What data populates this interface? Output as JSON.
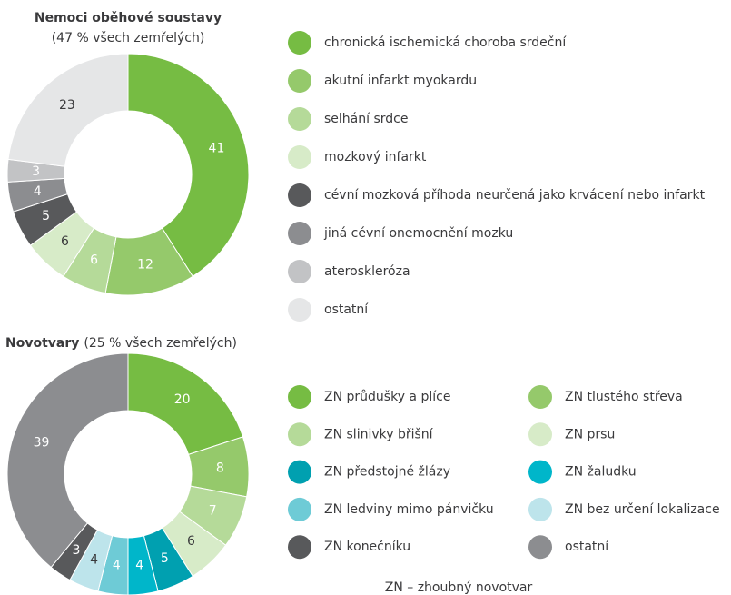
{
  "chart_data": [
    {
      "type": "pie",
      "title": "Nemoci oběhové soustavy",
      "subtitle": "(47 % všech zemřelých)",
      "categories": [
        "chronická ischemická choroba srdeční",
        "akutní infarkt myokardu",
        "selhání srdce",
        "mozkový infarkt",
        "cévní mozková příhoda neurčená jako krvácení nebo infarkt",
        "jiná cévní onemocnění mozku",
        "ateroskleróza",
        "ostatní"
      ],
      "values": [
        41,
        12,
        6,
        6,
        5,
        4,
        3,
        23
      ],
      "colors": [
        "#76bc43",
        "#95c96b",
        "#b5da99",
        "#d7ebc8",
        "#58595b",
        "#8c8d90",
        "#c2c3c5",
        "#e5e6e7"
      ]
    },
    {
      "type": "pie",
      "title": "Novotvary",
      "subtitle": "(25 % všech zemřelých)",
      "categories": [
        "ZN průdušky a plíce",
        "ZN tlustého střeva",
        "ZN slinivky břišní",
        "ZN prsu",
        "ZN předstojné žlázy",
        "ZN žaludku",
        "ZN ledviny mimo pánvičku",
        "ZN bez určení lokalizace",
        "ZN konečníku",
        "ostatní"
      ],
      "values": [
        20,
        8,
        7,
        6,
        5,
        4,
        4,
        4,
        3,
        39
      ],
      "colors": [
        "#76bc43",
        "#95c96b",
        "#b5da99",
        "#d7ebc8",
        "#00a0b0",
        "#00b6ca",
        "#6ecbd6",
        "#bde4eb",
        "#58595b",
        "#8c8d90"
      ],
      "annotation": "ZN – zhoubný novotvar"
    }
  ]
}
